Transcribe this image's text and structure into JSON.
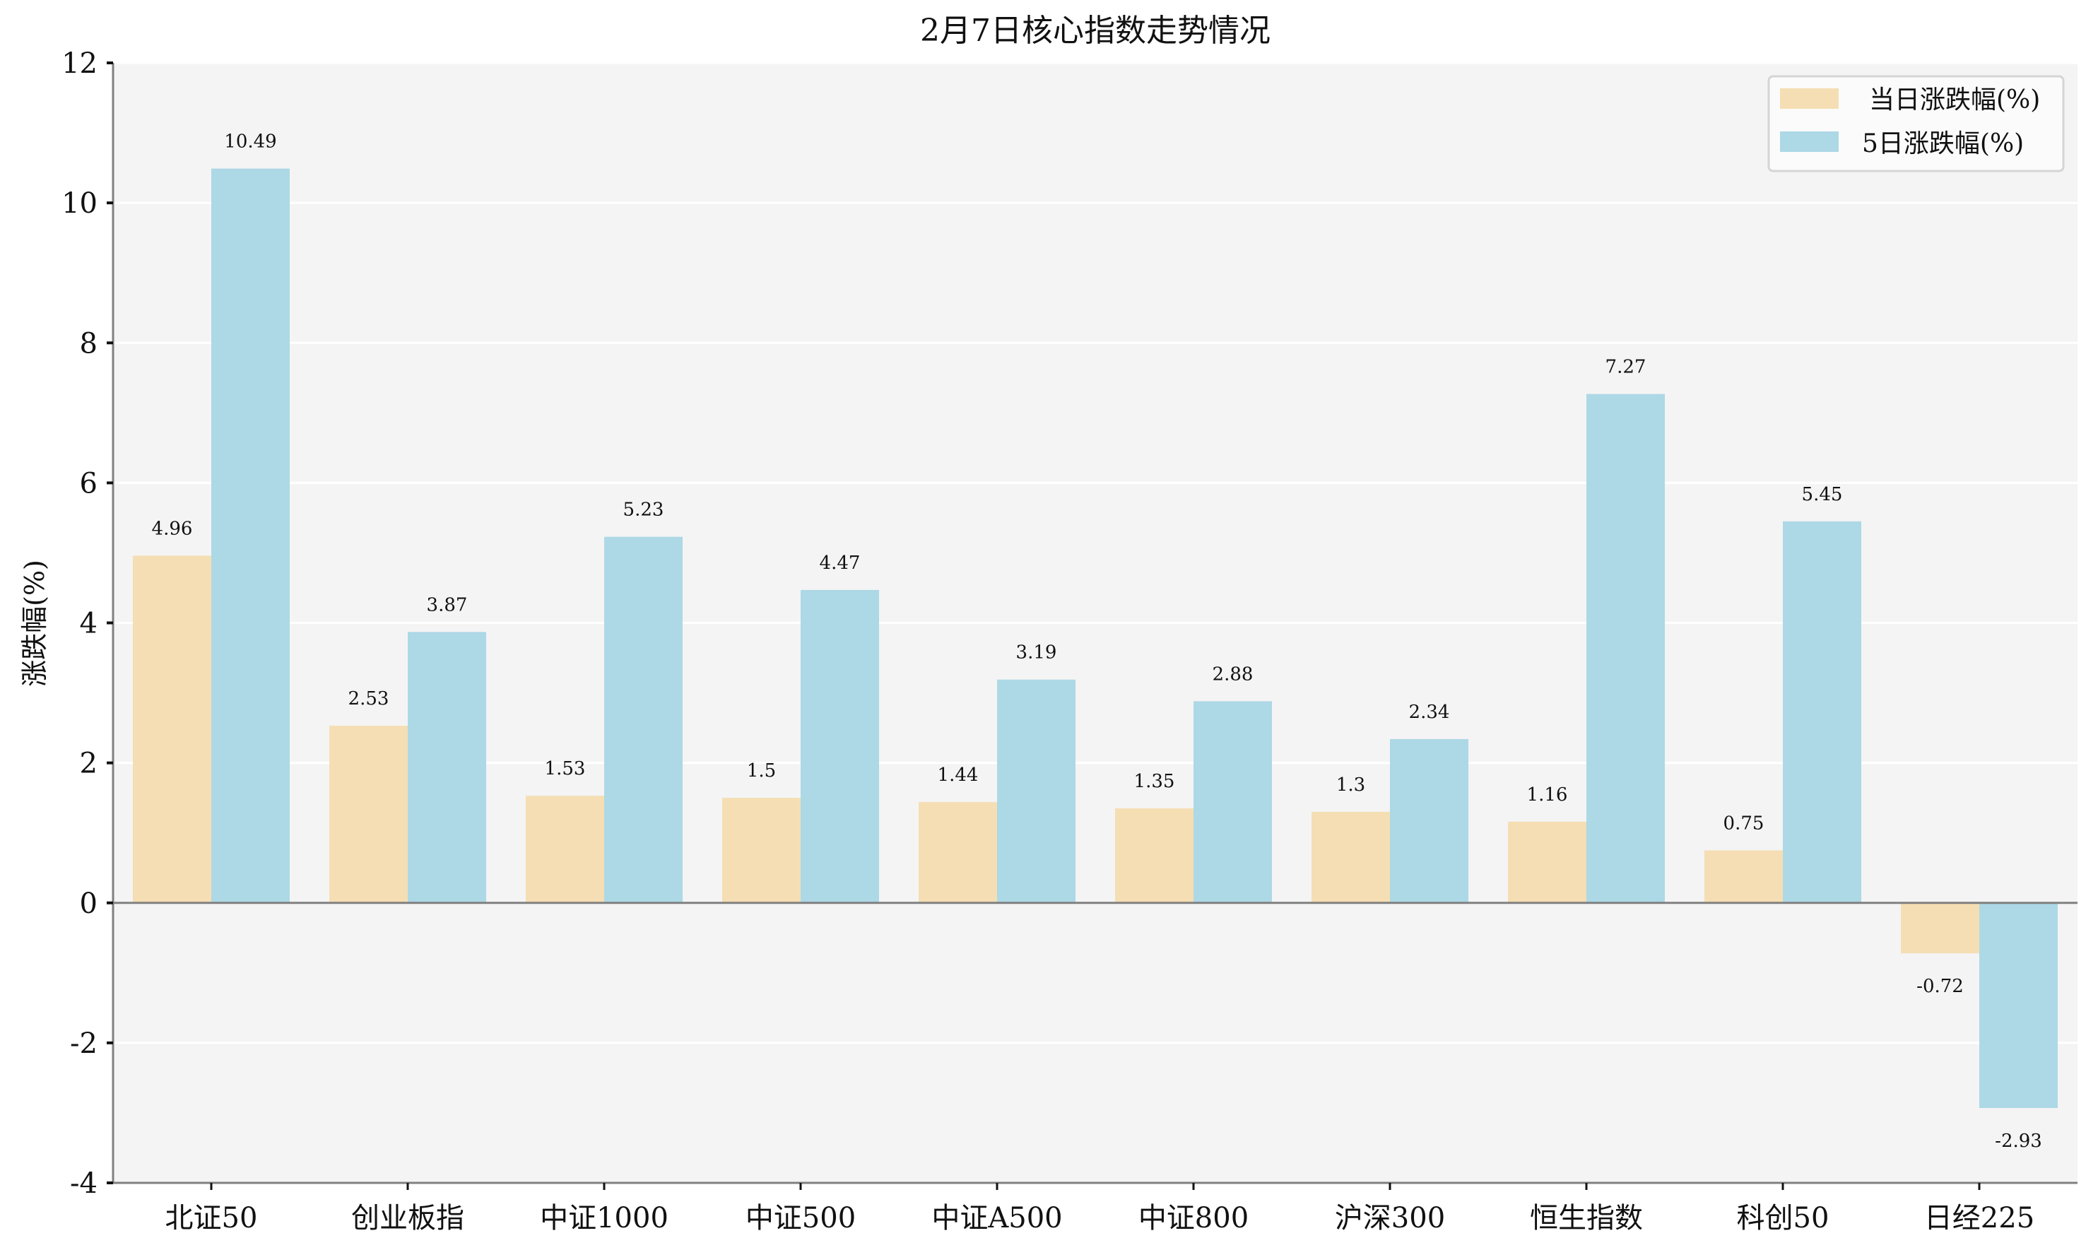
{
  "chart_data": {
    "type": "bar",
    "title": "2月7日核心指数走势情况",
    "xlabel": "",
    "ylabel": "涨跌幅(%)",
    "ylim": [
      -4,
      12
    ],
    "yticks": [
      -4,
      -2,
      0,
      2,
      4,
      6,
      8,
      10,
      12
    ],
    "grid": true,
    "legend_position": "upper right",
    "categories": [
      "北证50",
      "创业板指",
      "中证1000",
      "中证500",
      "中证A500",
      "中证800",
      "沪深300",
      "恒生指数",
      "科创50",
      "日经225"
    ],
    "series": [
      {
        "name": "当日涨跌幅(%)",
        "color": "#f5deb3",
        "values": [
          4.96,
          2.53,
          1.53,
          1.5,
          1.44,
          1.35,
          1.3,
          1.16,
          0.75,
          -0.72
        ]
      },
      {
        "name": "5日涨跌幅(%)",
        "color": "#add8e6",
        "values": [
          10.49,
          3.87,
          5.23,
          4.47,
          3.19,
          2.88,
          2.34,
          7.27,
          5.45,
          -2.93
        ]
      }
    ]
  },
  "colors": {
    "plot_background": "#f4f4f4",
    "grid": "#ffffff",
    "axis": "#808080",
    "zero_line": "#808080"
  }
}
